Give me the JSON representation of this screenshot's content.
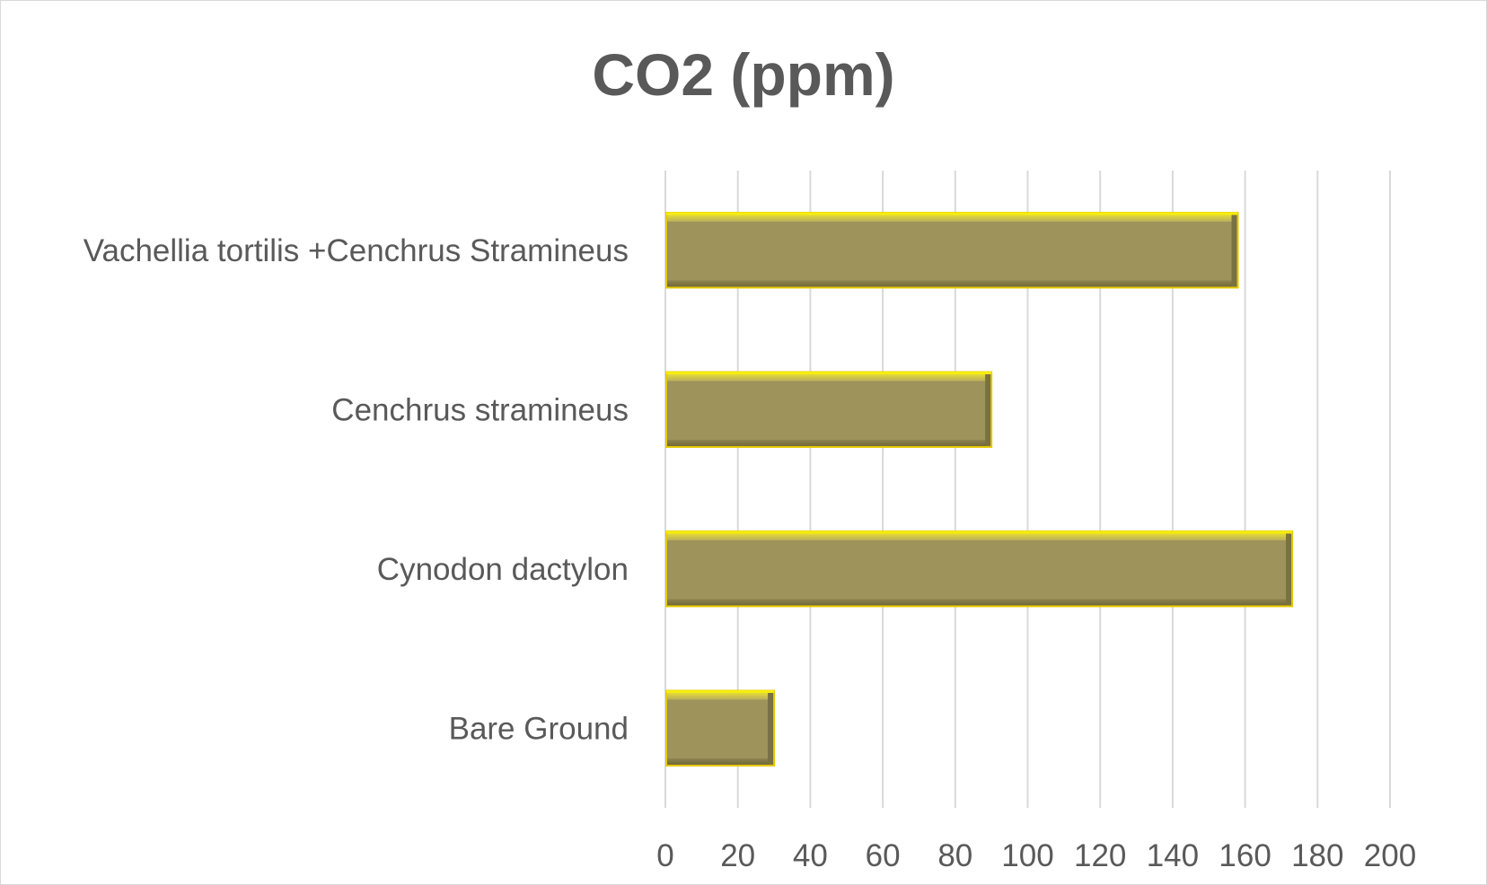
{
  "chart_data": {
    "type": "bar",
    "orientation": "horizontal",
    "title": "CO2 (ppm)",
    "categories": [
      "Bare Ground",
      "Cynodon dactylon",
      "Cenchrus stramineus",
      "Vachellia tortilis +Cenchrus Stramineus"
    ],
    "values": [
      30,
      173,
      90,
      158
    ],
    "xlim": [
      0,
      200
    ],
    "ticks": [
      "0",
      "20",
      "40",
      "60",
      "80",
      "100",
      "120",
      "140",
      "160",
      "180",
      "200"
    ],
    "grid": true,
    "legend": "none",
    "bar_color": "#9e935b",
    "bar_edge_color": "#e6c800",
    "bar_highlight_color": "#f5ec10"
  }
}
